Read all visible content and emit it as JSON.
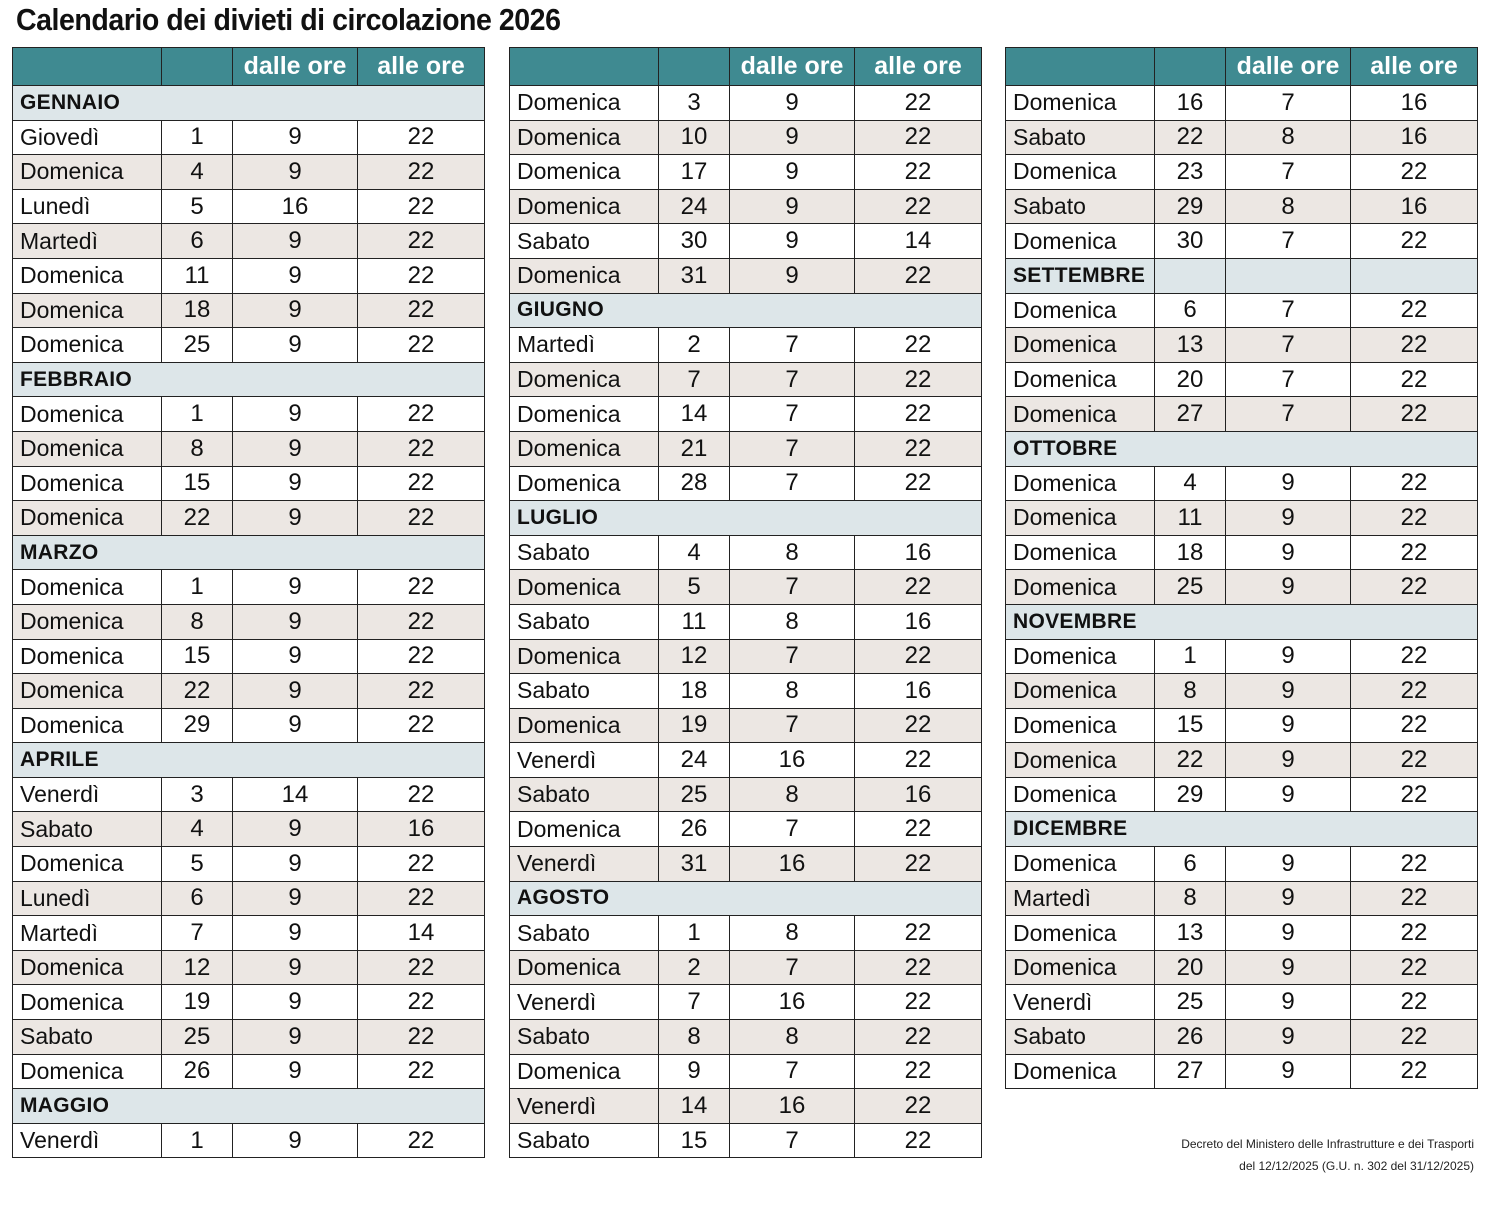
{
  "title": "Calendario dei divieti di circolazione 2026",
  "header": {
    "day": "",
    "date": "",
    "from": "dalle ore",
    "to": "alle ore"
  },
  "colors": {
    "header_bg": "#3f8a91",
    "month_bg": "#dde6e9",
    "shaded_row_bg": "#ece7e3"
  },
  "columns": [
    [
      {
        "type": "month",
        "label": "GENNAIO"
      },
      {
        "day": "Giovedì",
        "date": "1",
        "from": "9",
        "to": "22"
      },
      {
        "day": "Domenica",
        "date": "4",
        "from": "9",
        "to": "22"
      },
      {
        "day": "Lunedì",
        "date": "5",
        "from": "16",
        "to": "22"
      },
      {
        "day": "Martedì",
        "date": "6",
        "from": "9",
        "to": "22"
      },
      {
        "day": "Domenica",
        "date": "11",
        "from": "9",
        "to": "22"
      },
      {
        "day": "Domenica",
        "date": "18",
        "from": "9",
        "to": "22"
      },
      {
        "day": "Domenica",
        "date": "25",
        "from": "9",
        "to": "22"
      },
      {
        "type": "month",
        "label": "FEBBRAIO"
      },
      {
        "day": "Domenica",
        "date": "1",
        "from": "9",
        "to": "22"
      },
      {
        "day": "Domenica",
        "date": "8",
        "from": "9",
        "to": "22"
      },
      {
        "day": "Domenica",
        "date": "15",
        "from": "9",
        "to": "22"
      },
      {
        "day": "Domenica",
        "date": "22",
        "from": "9",
        "to": "22"
      },
      {
        "type": "month",
        "label": "MARZO"
      },
      {
        "day": "Domenica",
        "date": "1",
        "from": "9",
        "to": "22"
      },
      {
        "day": "Domenica",
        "date": "8",
        "from": "9",
        "to": "22"
      },
      {
        "day": "Domenica",
        "date": "15",
        "from": "9",
        "to": "22"
      },
      {
        "day": "Domenica",
        "date": "22",
        "from": "9",
        "to": "22"
      },
      {
        "day": "Domenica",
        "date": "29",
        "from": "9",
        "to": "22"
      },
      {
        "type": "month",
        "label": "APRILE"
      },
      {
        "day": "Venerdì",
        "date": "3",
        "from": "14",
        "to": "22"
      },
      {
        "day": "Sabato",
        "date": "4",
        "from": "9",
        "to": "16"
      },
      {
        "day": "Domenica",
        "date": "5",
        "from": "9",
        "to": "22"
      },
      {
        "day": "Lunedì",
        "date": "6",
        "from": "9",
        "to": "22"
      },
      {
        "day": "Martedì",
        "date": "7",
        "from": "9",
        "to": "14"
      },
      {
        "day": "Domenica",
        "date": "12",
        "from": "9",
        "to": "22"
      },
      {
        "day": "Domenica",
        "date": "19",
        "from": "9",
        "to": "22"
      },
      {
        "day": "Sabato",
        "date": "25",
        "from": "9",
        "to": "22"
      },
      {
        "day": "Domenica",
        "date": "26",
        "from": "9",
        "to": "22"
      },
      {
        "type": "month",
        "label": "MAGGIO"
      },
      {
        "day": "Venerdì",
        "date": "1",
        "from": "9",
        "to": "22"
      }
    ],
    [
      {
        "day": "Domenica",
        "date": "3",
        "from": "9",
        "to": "22"
      },
      {
        "day": "Domenica",
        "date": "10",
        "from": "9",
        "to": "22"
      },
      {
        "day": "Domenica",
        "date": "17",
        "from": "9",
        "to": "22"
      },
      {
        "day": "Domenica",
        "date": "24",
        "from": "9",
        "to": "22"
      },
      {
        "day": "Sabato",
        "date": "30",
        "from": "9",
        "to": "14"
      },
      {
        "day": "Domenica",
        "date": "31",
        "from": "9",
        "to": "22"
      },
      {
        "type": "month",
        "label": "GIUGNO"
      },
      {
        "day": "Martedì",
        "date": "2",
        "from": "7",
        "to": "22"
      },
      {
        "day": "Domenica",
        "date": "7",
        "from": "7",
        "to": "22"
      },
      {
        "day": "Domenica",
        "date": "14",
        "from": "7",
        "to": "22"
      },
      {
        "day": "Domenica",
        "date": "21",
        "from": "7",
        "to": "22"
      },
      {
        "day": "Domenica",
        "date": "28",
        "from": "7",
        "to": "22"
      },
      {
        "type": "month",
        "label": "LUGLIO"
      },
      {
        "day": "Sabato",
        "date": "4",
        "from": "8",
        "to": "16"
      },
      {
        "day": "Domenica",
        "date": "5",
        "from": "7",
        "to": "22"
      },
      {
        "day": "Sabato",
        "date": "11",
        "from": "8",
        "to": "16"
      },
      {
        "day": "Domenica",
        "date": "12",
        "from": "7",
        "to": "22"
      },
      {
        "day": "Sabato",
        "date": "18",
        "from": "8",
        "to": "16"
      },
      {
        "day": "Domenica",
        "date": "19",
        "from": "7",
        "to": "22"
      },
      {
        "day": "Venerdì",
        "date": "24",
        "from": "16",
        "to": "22"
      },
      {
        "day": "Sabato",
        "date": "25",
        "from": "8",
        "to": "16"
      },
      {
        "day": "Domenica",
        "date": "26",
        "from": "7",
        "to": "22"
      },
      {
        "day": "Venerdì",
        "date": "31",
        "from": "16",
        "to": "22"
      },
      {
        "type": "month",
        "label": "AGOSTO"
      },
      {
        "day": "Sabato",
        "date": "1",
        "from": "8",
        "to": "22"
      },
      {
        "day": "Domenica",
        "date": "2",
        "from": "7",
        "to": "22"
      },
      {
        "day": "Venerdì",
        "date": "7",
        "from": "16",
        "to": "22"
      },
      {
        "day": "Sabato",
        "date": "8",
        "from": "8",
        "to": "22"
      },
      {
        "day": "Domenica",
        "date": "9",
        "from": "7",
        "to": "22"
      },
      {
        "day": "Venerdì",
        "date": "14",
        "from": "16",
        "to": "22"
      },
      {
        "day": "Sabato",
        "date": "15",
        "from": "7",
        "to": "22"
      }
    ],
    [
      {
        "day": "Domenica",
        "date": "16",
        "from": "7",
        "to": "16"
      },
      {
        "day": "Sabato",
        "date": "22",
        "from": "8",
        "to": "16"
      },
      {
        "day": "Domenica",
        "date": "23",
        "from": "7",
        "to": "22"
      },
      {
        "day": "Sabato",
        "date": "29",
        "from": "8",
        "to": "16"
      },
      {
        "day": "Domenica",
        "date": "30",
        "from": "7",
        "to": "22"
      },
      {
        "type": "month",
        "label": "SETTEMBRE",
        "split": true
      },
      {
        "day": "Domenica",
        "date": "6",
        "from": "7",
        "to": "22"
      },
      {
        "day": "Domenica",
        "date": "13",
        "from": "7",
        "to": "22"
      },
      {
        "day": "Domenica",
        "date": "20",
        "from": "7",
        "to": "22"
      },
      {
        "day": "Domenica",
        "date": "27",
        "from": "7",
        "to": "22"
      },
      {
        "type": "month",
        "label": "OTTOBRE"
      },
      {
        "day": "Domenica",
        "date": "4",
        "from": "9",
        "to": "22"
      },
      {
        "day": "Domenica",
        "date": "11",
        "from": "9",
        "to": "22"
      },
      {
        "day": "Domenica",
        "date": "18",
        "from": "9",
        "to": "22"
      },
      {
        "day": "Domenica",
        "date": "25",
        "from": "9",
        "to": "22"
      },
      {
        "type": "month",
        "label": "NOVEMBRE"
      },
      {
        "day": "Domenica",
        "date": "1",
        "from": "9",
        "to": "22"
      },
      {
        "day": "Domenica",
        "date": "8",
        "from": "9",
        "to": "22"
      },
      {
        "day": "Domenica",
        "date": "15",
        "from": "9",
        "to": "22"
      },
      {
        "day": "Domenica",
        "date": "22",
        "from": "9",
        "to": "22"
      },
      {
        "day": "Domenica",
        "date": "29",
        "from": "9",
        "to": "22"
      },
      {
        "type": "month",
        "label": "DICEMBRE"
      },
      {
        "day": "Domenica",
        "date": "6",
        "from": "9",
        "to": "22"
      },
      {
        "day": "Martedì",
        "date": "8",
        "from": "9",
        "to": "22"
      },
      {
        "day": "Domenica",
        "date": "13",
        "from": "9",
        "to": "22"
      },
      {
        "day": "Domenica",
        "date": "20",
        "from": "9",
        "to": "22"
      },
      {
        "day": "Venerdì",
        "date": "25",
        "from": "9",
        "to": "22"
      },
      {
        "day": "Sabato",
        "date": "26",
        "from": "9",
        "to": "22"
      },
      {
        "day": "Domenica",
        "date": "27",
        "from": "9",
        "to": "22"
      }
    ]
  ],
  "footer": {
    "line1": "Decreto del Ministero delle Infrastrutture e dei Trasporti",
    "line2": "del 12/12/2025 (G.U. n. 302 del 31/12/2025)"
  }
}
